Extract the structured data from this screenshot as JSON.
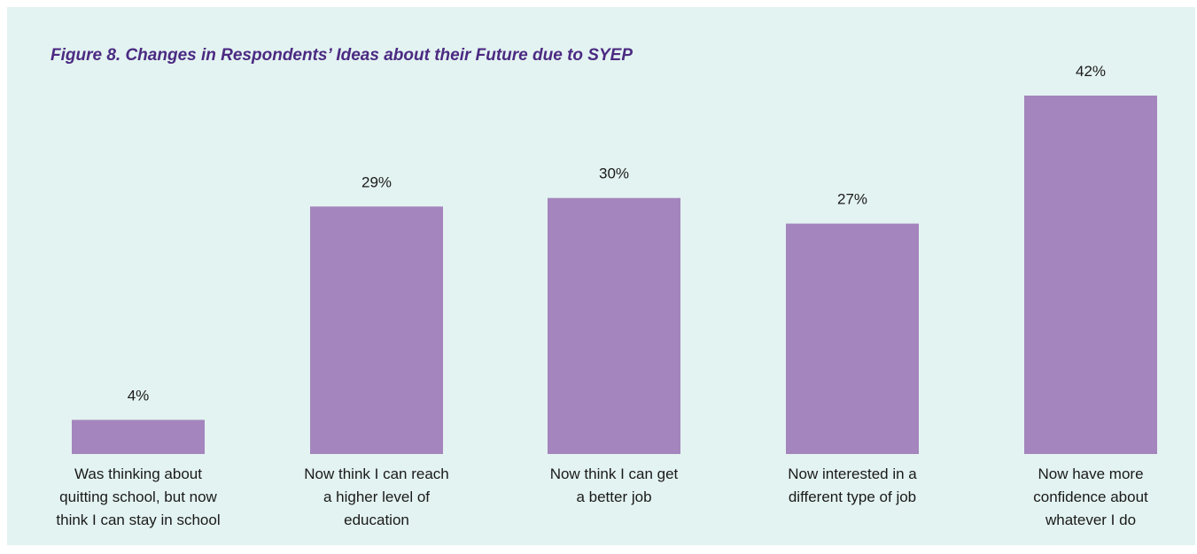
{
  "title": "Figure 8. Changes in Respondents’ Ideas about their Future due to SYEP",
  "colors": {
    "background": "#e3f3f1",
    "bar": "#a485bd",
    "title": "#4b2a82"
  },
  "chart_data": {
    "type": "bar",
    "title": "Figure 8. Changes in Respondents’ Ideas about their Future due to SYEP",
    "categories": [
      [
        "Was thinking about",
        "quitting school, but now",
        "think I can stay in school"
      ],
      [
        "Now think I can reach",
        "a higher level of",
        "education"
      ],
      [
        "Now think I can get",
        "a better job"
      ],
      [
        "Now interested in a",
        "different type of job"
      ],
      [
        "Now have more",
        "confidence about",
        "whatever I do"
      ]
    ],
    "values": [
      4,
      29,
      30,
      27,
      42
    ],
    "value_labels": [
      "4%",
      "29%",
      "30%",
      "27%",
      "42%"
    ],
    "unit": "%",
    "ylim": [
      0,
      42
    ],
    "grid": false,
    "legend": "none",
    "xlabel": "",
    "ylabel": ""
  }
}
